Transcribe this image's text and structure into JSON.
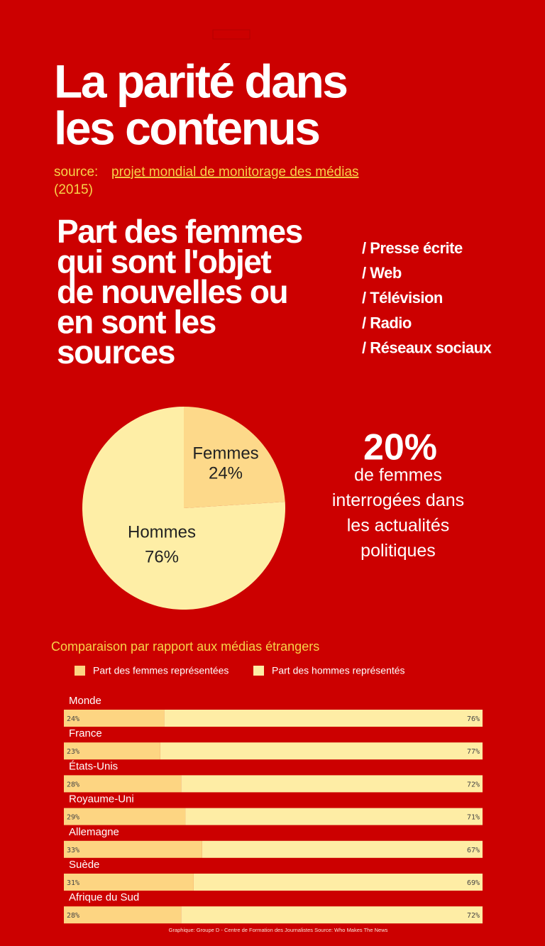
{
  "header": {
    "title": [
      "La parité dans",
      "les contenus"
    ],
    "source_label": "source:",
    "source_link": "projet mondial de monitorage des médias",
    "source_year": "(2015)"
  },
  "subtitle": [
    "Part des femmes",
    "qui sont l'objet",
    "de nouvelles ou",
    "en sont les",
    "sources"
  ],
  "media": [
    "/ Presse écrite",
    "/ Web",
    "/ Télévision",
    "/ Radio",
    "/ Réseaux sociaux"
  ],
  "highlight": {
    "value": "20%",
    "text": [
      "de femmes",
      "interrogées dans",
      "les actualités",
      "politiques"
    ]
  },
  "chart_data": [
    {
      "type": "pie",
      "categories": [
        "Femmes",
        "Hommes"
      ],
      "values": [
        24,
        76
      ],
      "value_labels": [
        "24%",
        "76%"
      ],
      "colors": [
        "#fdd98a",
        "#feeea6"
      ]
    },
    {
      "type": "bar",
      "orientation": "horizontal",
      "stacked": true,
      "title": "Comparaison par rapport aux  médias étrangers",
      "categories": [
        "Monde",
        "France",
        "États-Unis",
        "Royaume-Uni",
        "Allemagne",
        "Suède",
        "Afrique du Sud"
      ],
      "xlim": [
        0,
        100
      ],
      "series": [
        {
          "name": "Part des femmes représentées",
          "color": "#fdd582",
          "values": [
            24,
            23,
            28,
            29,
            33,
            31,
            28
          ],
          "value_labels": [
            "24%",
            "23%",
            "28%",
            "29%",
            "33%",
            "31%",
            "28%"
          ]
        },
        {
          "name": "Part des hommes représentés",
          "color": "#feeda5",
          "values": [
            76,
            77,
            72,
            71,
            67,
            69,
            72
          ],
          "value_labels": [
            "76%",
            "77%",
            "72%",
            "71%",
            "67%",
            "69%",
            "72%"
          ]
        }
      ]
    }
  ],
  "footer": "Graphique: Groupe D - Centre de Formation des Journalistes Source: Who Makes The News"
}
